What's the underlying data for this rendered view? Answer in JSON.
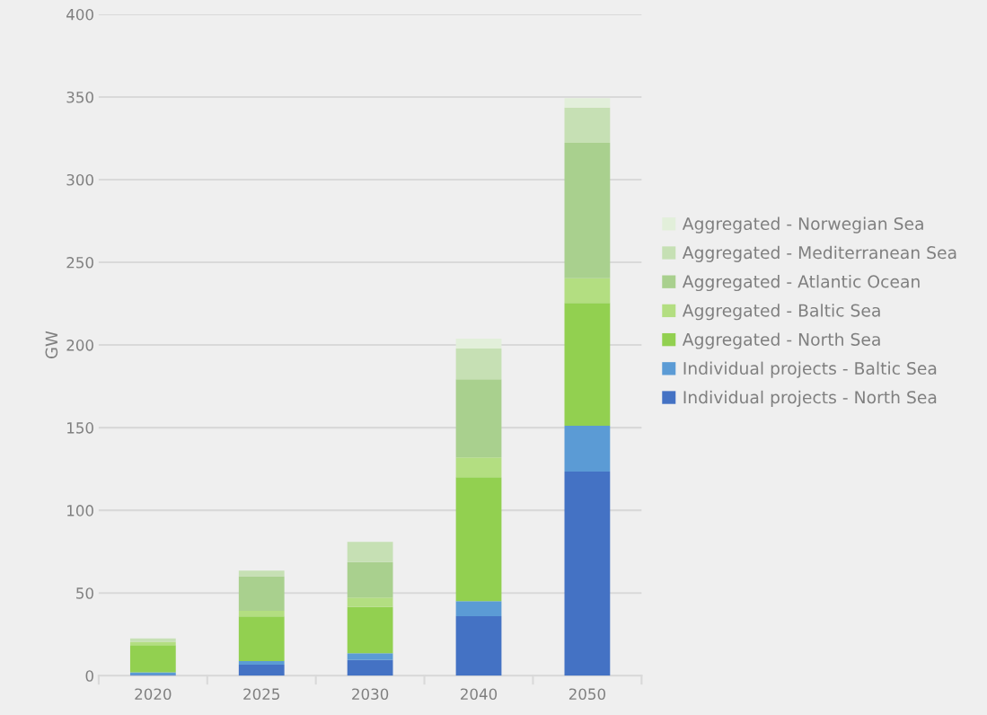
{
  "chart_data": {
    "type": "bar",
    "stacked": true,
    "ylabel": "GW",
    "categories": [
      "2020",
      "2025",
      "2030",
      "2040",
      "2050"
    ],
    "series": [
      {
        "name": "Individual projects - North Sea",
        "color": "#4472c4",
        "values": [
          0.5,
          6.6,
          9.5,
          36,
          123.5
        ]
      },
      {
        "name": "Individual projects - Baltic Sea",
        "color": "#5b9bd5",
        "values": [
          1.5,
          2.2,
          4,
          9.1,
          27.6
        ]
      },
      {
        "name": "Aggregated - North Sea",
        "color": "#92d050",
        "values": [
          16.5,
          27,
          28,
          75,
          74.4
        ]
      },
      {
        "name": "Aggregated - Baltic Sea",
        "color": "#b3de81",
        "values": [
          2,
          3.4,
          5.7,
          11.9,
          14.9
        ]
      },
      {
        "name": "Aggregated - Atlantic Ocean",
        "color": "#a9d08e",
        "values": [
          0,
          21,
          21.5,
          47.3,
          81.9
        ]
      },
      {
        "name": "Aggregated - Mediterranean Sea",
        "color": "#c6e0b4",
        "values": [
          2,
          3.3,
          12.2,
          18.5,
          21.3
        ]
      },
      {
        "name": "Aggregated - Norwegian Sea",
        "color": "#e2efda",
        "values": [
          0,
          0,
          0,
          6,
          5.7
        ]
      }
    ],
    "ylim": [
      0,
      400
    ],
    "yticks": [
      0,
      50,
      100,
      150,
      200,
      250,
      300,
      350,
      400
    ],
    "grid": "y",
    "legend": "right"
  }
}
